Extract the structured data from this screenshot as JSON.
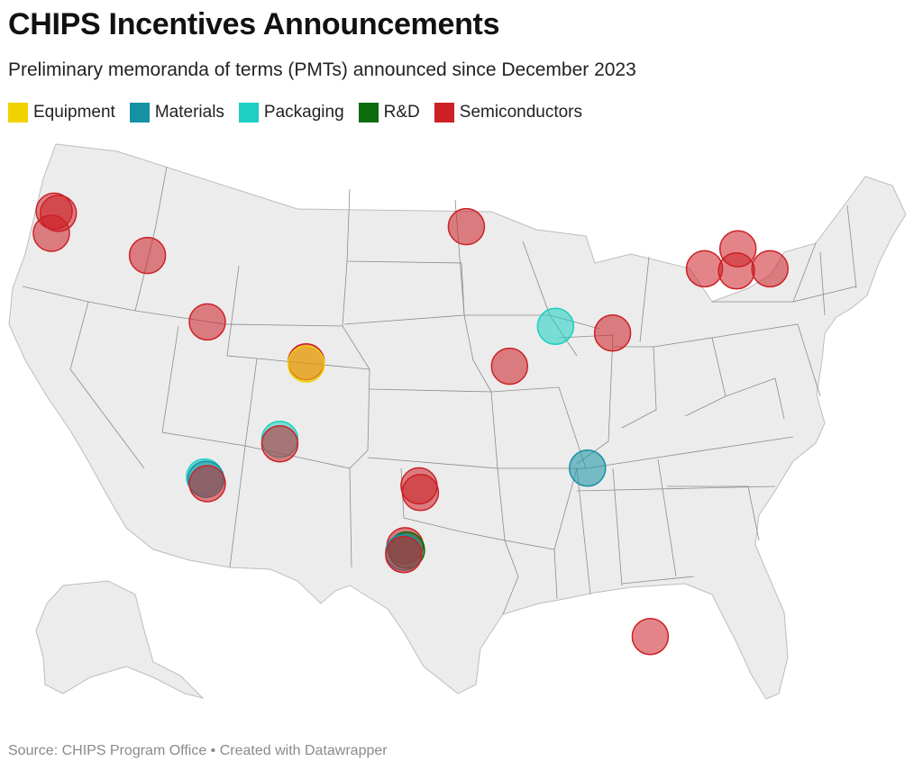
{
  "header": {
    "title": "CHIPS Incentives Announcements",
    "subtitle": "Preliminary memoranda of terms (PMTs) announced since December 2023"
  },
  "legend": {
    "items": [
      {
        "label": "Equipment",
        "color": "#f2d100"
      },
      {
        "label": "Materials",
        "color": "#1591a4"
      },
      {
        "label": "Packaging",
        "color": "#1bd0c3"
      },
      {
        "label": "R&D",
        "color": "#0c6b0c"
      },
      {
        "label": "Semiconductors",
        "color": "#cc2127"
      }
    ]
  },
  "footer": {
    "source": "Source: CHIPS Program Office • Created with Datawrapper"
  },
  "map": {
    "region": "contiguous United States with Alaska inset",
    "colors": {
      "land": "#ececec",
      "border": "#8c8c8c"
    },
    "markers": [
      {
        "category": "Semiconductors",
        "lon": -122.9,
        "lat": 45.6
      },
      {
        "category": "Semiconductors",
        "lon": -122.6,
        "lat": 45.5
      },
      {
        "category": "Semiconductors",
        "lon": -123.1,
        "lat": 44.6
      },
      {
        "category": "Semiconductors",
        "lon": -116.2,
        "lat": 43.6
      },
      {
        "category": "Semiconductors",
        "lon": -111.9,
        "lat": 40.6
      },
      {
        "category": "Semiconductors",
        "lon": -104.8,
        "lat": 38.8
      },
      {
        "category": "Equipment",
        "lon": -104.8,
        "lat": 38.7
      },
      {
        "category": "Packaging",
        "lon": -112.1,
        "lat": 33.6
      },
      {
        "category": "Materials",
        "lon": -112.0,
        "lat": 33.5
      },
      {
        "category": "Semiconductors",
        "lon": -111.9,
        "lat": 33.3
      },
      {
        "category": "Packaging",
        "lon": -106.7,
        "lat": 35.3
      },
      {
        "category": "Semiconductors",
        "lon": -106.7,
        "lat": 35.1
      },
      {
        "category": "Semiconductors",
        "lon": -96.7,
        "lat": 33.2
      },
      {
        "category": "Semiconductors",
        "lon": -96.6,
        "lat": 32.9
      },
      {
        "category": "Semiconductors",
        "lon": -97.7,
        "lat": 30.5
      },
      {
        "category": "R&D",
        "lon": -97.6,
        "lat": 30.3
      },
      {
        "category": "Materials",
        "lon": -97.8,
        "lat": 30.2
      },
      {
        "category": "Semiconductors",
        "lon": -97.8,
        "lat": 30.1
      },
      {
        "category": "Semiconductors",
        "lon": -93.3,
        "lat": 44.9
      },
      {
        "category": "Semiconductors",
        "lon": -90.2,
        "lat": 38.6
      },
      {
        "category": "Packaging",
        "lon": -86.9,
        "lat": 40.4
      },
      {
        "category": "Semiconductors",
        "lon": -82.8,
        "lat": 40.1
      },
      {
        "category": "Materials",
        "lon": -84.6,
        "lat": 34.0
      },
      {
        "category": "Semiconductors",
        "lon": -80.1,
        "lat": 26.4
      },
      {
        "category": "Semiconductors",
        "lon": -76.2,
        "lat": 43.0
      },
      {
        "category": "Semiconductors",
        "lon": -73.9,
        "lat": 42.9
      },
      {
        "category": "Semiconductors",
        "lon": -73.8,
        "lat": 43.9
      },
      {
        "category": "Semiconductors",
        "lon": -71.5,
        "lat": 43.0
      }
    ]
  }
}
